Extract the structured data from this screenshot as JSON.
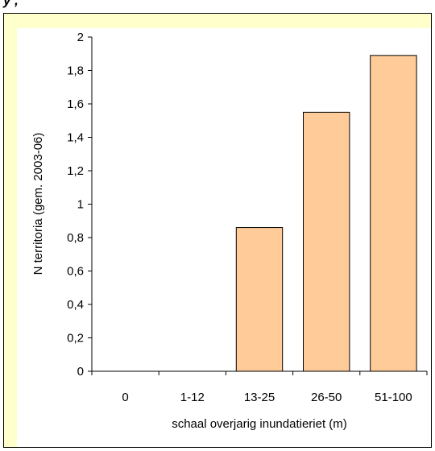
{
  "header": {
    "clipped_text": "y , "
  },
  "chart_data": {
    "type": "bar",
    "categories": [
      "0",
      "1-12",
      "13-25",
      "26-50",
      "51-100"
    ],
    "values": [
      0,
      0,
      0.86,
      1.55,
      1.89
    ],
    "xlabel": "schaal overjarig inundatieriet (m)",
    "ylabel": "N territoria (gem. 2003-06)",
    "ylim": [
      0,
      2
    ],
    "yticks": [
      "0",
      "0,2",
      "0,4",
      "0,6",
      "0,8",
      "1",
      "1,2",
      "1,4",
      "1,6",
      "1,8",
      "2"
    ],
    "grid": false,
    "bar_color": "#ffcc99",
    "frame_color": "#ffffcc"
  }
}
